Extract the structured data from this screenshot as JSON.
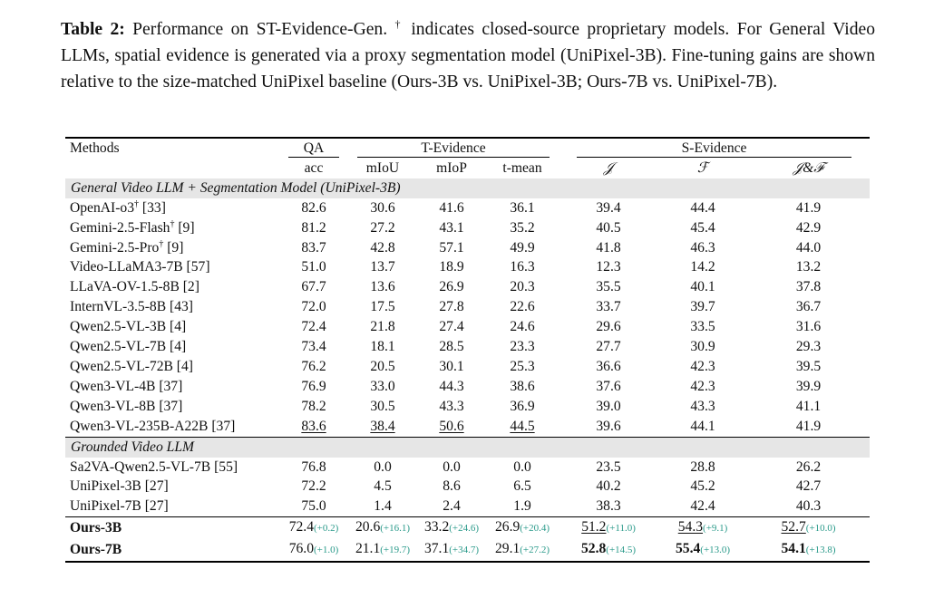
{
  "caption": {
    "label": "Table 2:",
    "part1": " Performance on ST-Evidence-Gen. ",
    "dagger": "†",
    "part2": " indicates closed-source proprietary models. For General Video LLMs, spatial evidence is generated via a proxy segmentation model (UniPixel-3B). Fine-tuning gains are shown relative to the size-matched UniPixel baseline (Ours-3B vs. UniPixel-3B; Ours-7B vs. UniPixel-7B)."
  },
  "header": {
    "methods": "Methods",
    "qa": "QA",
    "t_evidence": "T-Evidence",
    "s_evidence": "S-Evidence",
    "acc": "acc",
    "miou": "mIoU",
    "miop": "mIoP",
    "tmean": "t-mean",
    "j": "𝒥",
    "f": "ℱ",
    "jf": "𝒥&ℱ"
  },
  "sections": {
    "general": "General Video LLM + Segmentation Model (UniPixel-3B)",
    "grounded": "Grounded Video LLM"
  },
  "rows": [
    {
      "name": "OpenAI-o3",
      "dag": "†",
      "ref": " [33]",
      "v": [
        "82.6",
        "30.6",
        "41.6",
        "36.1",
        "39.4",
        "44.4",
        "41.9"
      ]
    },
    {
      "name": "Gemini-2.5-Flash",
      "dag": "†",
      "ref": " [9]",
      "v": [
        "81.2",
        "27.2",
        "43.1",
        "35.2",
        "40.5",
        "45.4",
        "42.9"
      ]
    },
    {
      "name": "Gemini-2.5-Pro",
      "dag": "†",
      "ref": " [9]",
      "v": [
        "83.7",
        "42.8",
        "57.1",
        "49.9",
        "41.8",
        "46.3",
        "44.0"
      ]
    },
    {
      "name": "Video-LLaMA3-7B",
      "dag": "",
      "ref": " [57]",
      "v": [
        "51.0",
        "13.7",
        "18.9",
        "16.3",
        "12.3",
        "14.2",
        "13.2"
      ]
    },
    {
      "name": "LLaVA-OV-1.5-8B",
      "dag": "",
      "ref": " [2]",
      "v": [
        "67.7",
        "13.6",
        "26.9",
        "20.3",
        "35.5",
        "40.1",
        "37.8"
      ]
    },
    {
      "name": "InternVL-3.5-8B",
      "dag": "",
      "ref": " [43]",
      "v": [
        "72.0",
        "17.5",
        "27.8",
        "22.6",
        "33.7",
        "39.7",
        "36.7"
      ]
    },
    {
      "name": "Qwen2.5-VL-3B",
      "dag": "",
      "ref": " [4]",
      "v": [
        "72.4",
        "21.8",
        "27.4",
        "24.6",
        "29.6",
        "33.5",
        "31.6"
      ]
    },
    {
      "name": "Qwen2.5-VL-7B",
      "dag": "",
      "ref": " [4]",
      "v": [
        "73.4",
        "18.1",
        "28.5",
        "23.3",
        "27.7",
        "30.9",
        "29.3"
      ]
    },
    {
      "name": "Qwen2.5-VL-72B",
      "dag": "",
      "ref": " [4]",
      "v": [
        "76.2",
        "20.5",
        "30.1",
        "25.3",
        "36.6",
        "42.3",
        "39.5"
      ]
    },
    {
      "name": "Qwen3-VL-4B",
      "dag": "",
      "ref": " [37]",
      "v": [
        "76.9",
        "33.0",
        "44.3",
        "38.6",
        "37.6",
        "42.3",
        "39.9"
      ]
    },
    {
      "name": "Qwen3-VL-8B",
      "dag": "",
      "ref": " [37]",
      "v": [
        "78.2",
        "30.5",
        "43.3",
        "36.9",
        "39.0",
        "43.3",
        "41.1"
      ]
    },
    {
      "name": "Qwen3-VL-235B-A22B",
      "dag": "",
      "ref": " [37]",
      "v": [
        "83.6",
        "38.4",
        "50.6",
        "44.5",
        "39.6",
        "44.1",
        "41.9"
      ]
    },
    {
      "name": "Sa2VA-Qwen2.5-VL-7B",
      "dag": "",
      "ref": " [55]",
      "v": [
        "76.8",
        "0.0",
        "0.0",
        "0.0",
        "23.5",
        "28.8",
        "26.2"
      ]
    },
    {
      "name": "UniPixel-3B",
      "dag": "",
      "ref": " [27]",
      "v": [
        "72.2",
        "4.5",
        "8.6",
        "6.5",
        "40.2",
        "45.2",
        "42.7"
      ]
    },
    {
      "name": "UniPixel-7B",
      "dag": "",
      "ref": " [27]",
      "v": [
        "75.0",
        "1.4",
        "2.4",
        "1.9",
        "38.3",
        "42.4",
        "40.3"
      ]
    }
  ],
  "ours": [
    {
      "name": "Ours-3B",
      "v": [
        "72.4",
        "20.6",
        "33.2",
        "26.9",
        "51.2",
        "54.3",
        "52.7"
      ],
      "g": [
        "(+0.2)",
        "(+16.1)",
        "(+24.6)",
        "(+20.4)",
        "(+11.0)",
        "(+9.1)",
        "(+10.0)"
      ]
    },
    {
      "name": "Ours-7B",
      "v": [
        "76.0",
        "21.1",
        "37.1",
        "29.1",
        "52.8",
        "55.4",
        "54.1"
      ],
      "g": [
        "(+1.0)",
        "(+19.7)",
        "(+34.7)",
        "(+27.2)",
        "(+14.5)",
        "(+13.0)",
        "(+13.8)"
      ]
    }
  ],
  "colors": {
    "gain": "#2a9a8a",
    "section_bg": "#e6e6e6"
  }
}
